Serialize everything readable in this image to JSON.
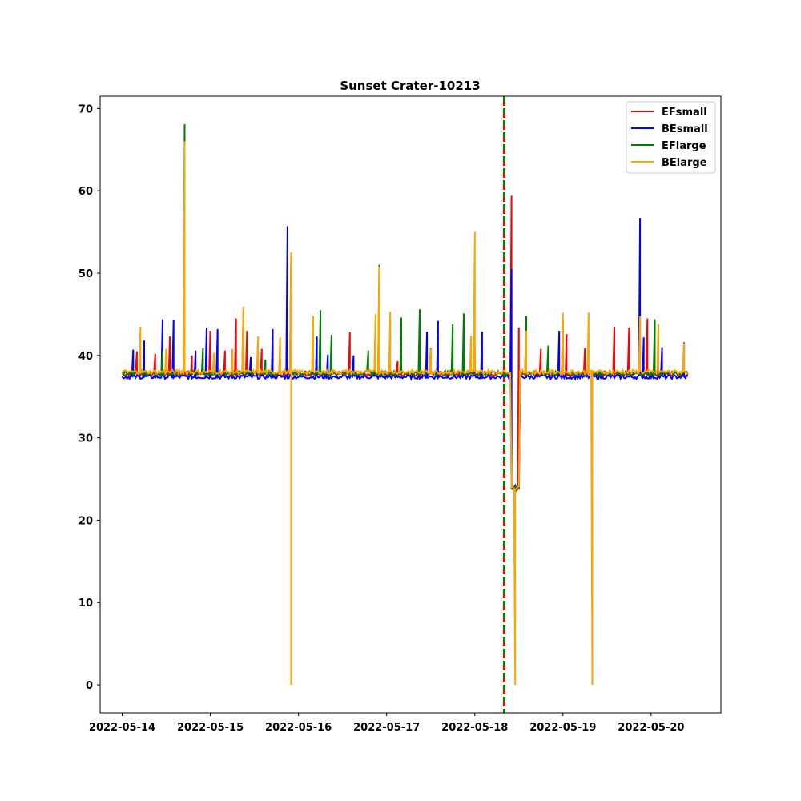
{
  "chart_data": {
    "type": "line",
    "title": "Sunset Crater-10213",
    "xlabel": "",
    "ylabel": "",
    "x_ticks": [
      "2022-05-14",
      "2022-05-15",
      "2022-05-16",
      "2022-05-17",
      "2022-05-18",
      "2022-05-19",
      "2022-05-20"
    ],
    "y_ticks": [
      0,
      10,
      20,
      30,
      40,
      50,
      60,
      70
    ],
    "xlim": [
      "2022-05-13 18:00",
      "2022-05-20 19:00"
    ],
    "ylim": [
      -3.4,
      71.5
    ],
    "grid": false,
    "legend_position": "top-right",
    "baseline": 37.6,
    "vertical_marker": {
      "date": "2022-05-18 08:00",
      "colors": [
        "#008000",
        "#ff0000"
      ],
      "style": "dashed"
    },
    "series": [
      {
        "name": "EFsmall",
        "color": "#ff0000",
        "spikes": [
          [
            "2022-05-14 04:00",
            40.5
          ],
          [
            "2022-05-14 09:00",
            40.2
          ],
          [
            "2022-05-14 13:00",
            42.3
          ],
          [
            "2022-05-14 19:00",
            40.0
          ],
          [
            "2022-05-15 00:00",
            43.0
          ],
          [
            "2022-05-15 04:00",
            40.6
          ],
          [
            "2022-05-15 07:00",
            44.5
          ],
          [
            "2022-05-15 10:00",
            43.0
          ],
          [
            "2022-05-15 14:00",
            40.8
          ],
          [
            "2022-05-15 19:00",
            39.6
          ],
          [
            "2022-05-16 08:00",
            39.8
          ],
          [
            "2022-05-16 14:00",
            42.8
          ],
          [
            "2022-05-16 22:00",
            40.0
          ],
          [
            "2022-05-17 03:00",
            39.3
          ],
          [
            "2022-05-17 12:00",
            40.9
          ],
          [
            "2022-05-18 00:00",
            41.2
          ],
          [
            "2022-05-18 10:00",
            59.4
          ],
          [
            "2022-05-18 12:00",
            43.4
          ],
          [
            "2022-05-18 18:00",
            40.8
          ],
          [
            "2022-05-19 01:00",
            42.6
          ],
          [
            "2022-05-19 06:00",
            40.9
          ],
          [
            "2022-05-19 14:00",
            43.5
          ],
          [
            "2022-05-19 18:00",
            43.4
          ],
          [
            "2022-05-19 23:00",
            44.5
          ]
        ]
      },
      {
        "name": "BEsmall",
        "color": "#0000ff",
        "spikes": [
          [
            "2022-05-14 03:00",
            40.7
          ],
          [
            "2022-05-14 06:00",
            41.8
          ],
          [
            "2022-05-14 11:00",
            44.4
          ],
          [
            "2022-05-14 14:00",
            44.3
          ],
          [
            "2022-05-14 20:00",
            40.6
          ],
          [
            "2022-05-14 23:00",
            43.4
          ],
          [
            "2022-05-15 02:00",
            43.2
          ],
          [
            "2022-05-15 11:00",
            39.8
          ],
          [
            "2022-05-15 17:00",
            43.2
          ],
          [
            "2022-05-15 21:00",
            55.7
          ],
          [
            "2022-05-16 05:00",
            42.3
          ],
          [
            "2022-05-16 08:00",
            40.1
          ],
          [
            "2022-05-16 15:00",
            40.0
          ],
          [
            "2022-05-16 21:00",
            44.0
          ],
          [
            "2022-05-17 11:00",
            42.9
          ],
          [
            "2022-05-17 14:00",
            44.2
          ],
          [
            "2022-05-18 02:00",
            42.9
          ],
          [
            "2022-05-18 10:00",
            50.5
          ],
          [
            "2022-05-18 23:00",
            43.0
          ],
          [
            "2022-05-19 21:00",
            56.7
          ],
          [
            "2022-05-19 22:00",
            42.2
          ],
          [
            "2022-05-20 03:00",
            41.0
          ],
          [
            "2022-05-20 09:00",
            41.6
          ]
        ]
      },
      {
        "name": "EFlarge",
        "color": "#008000",
        "spikes": [
          [
            "2022-05-14 05:00",
            39.2
          ],
          [
            "2022-05-14 11:00",
            40.5
          ],
          [
            "2022-05-14 17:00",
            68.1
          ],
          [
            "2022-05-14 22:00",
            40.9
          ],
          [
            "2022-05-15 09:00",
            45.3
          ],
          [
            "2022-05-15 15:00",
            39.5
          ],
          [
            "2022-05-15 22:00",
            52.5
          ],
          [
            "2022-05-16 06:00",
            45.5
          ],
          [
            "2022-05-16 09:00",
            42.5
          ],
          [
            "2022-05-16 19:00",
            40.6
          ],
          [
            "2022-05-16 22:00",
            51.0
          ],
          [
            "2022-05-17 04:00",
            44.6
          ],
          [
            "2022-05-17 09:00",
            45.6
          ],
          [
            "2022-05-17 18:00",
            43.8
          ],
          [
            "2022-05-17 21:00",
            45.1
          ],
          [
            "2022-05-18 14:00",
            44.8
          ],
          [
            "2022-05-18 20:00",
            41.2
          ],
          [
            "2022-05-19 00:00",
            44.3
          ],
          [
            "2022-05-20 01:00",
            44.4
          ]
        ]
      },
      {
        "name": "BElarge",
        "color": "#ffa500",
        "spikes": [
          [
            "2022-05-14 05:00",
            43.5
          ],
          [
            "2022-05-14 12:00",
            40.8
          ],
          [
            "2022-05-14 17:00",
            66.0
          ],
          [
            "2022-05-15 01:00",
            40.3
          ],
          [
            "2022-05-15 06:00",
            40.8
          ],
          [
            "2022-05-15 09:00",
            45.9
          ],
          [
            "2022-05-15 13:00",
            42.3
          ],
          [
            "2022-05-15 19:00",
            42.2
          ],
          [
            "2022-05-15 22:00",
            52.5
          ],
          [
            "2022-05-15 22:00",
            0.0
          ],
          [
            "2022-05-16 04:00",
            44.8
          ],
          [
            "2022-05-16 21:00",
            45.0
          ],
          [
            "2022-05-16 22:00",
            50.8
          ],
          [
            "2022-05-17 01:00",
            45.3
          ],
          [
            "2022-05-17 12:00",
            40.8
          ],
          [
            "2022-05-17 23:00",
            42.4
          ],
          [
            "2022-05-18 00:00",
            55.0
          ],
          [
            "2022-05-18 11:00",
            0.0
          ],
          [
            "2022-05-18 14:00",
            43.0
          ],
          [
            "2022-05-19 00:00",
            45.2
          ],
          [
            "2022-05-19 07:00",
            45.2
          ],
          [
            "2022-05-19 08:00",
            0.0
          ],
          [
            "2022-05-19 21:00",
            44.8
          ],
          [
            "2022-05-20 02:00",
            43.8
          ],
          [
            "2022-05-20 09:00",
            41.5
          ]
        ]
      }
    ],
    "dip": {
      "start": "2022-05-18 10:00",
      "end": "2022-05-18 12:00",
      "value": 24.0
    }
  }
}
